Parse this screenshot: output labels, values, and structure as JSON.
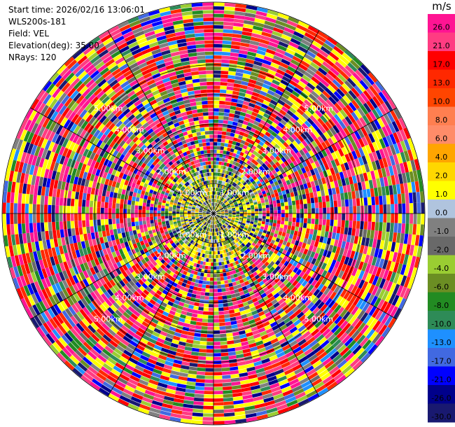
{
  "info": {
    "start_time": "Start time: 2026/02/16 13:06:01",
    "instrument": "WLS200s-181",
    "field": "Field: VEL",
    "elevation": "Elevation(deg): 35.00",
    "nrays": "NRays: 120"
  },
  "colorbar": {
    "unit": "m/s",
    "labels": [
      "26.0",
      "21.0",
      "17.0",
      "13.0",
      "10.0",
      "8.0",
      "6.0",
      "4.0",
      "2.0",
      "1.0",
      "0.0",
      "-1.0",
      "-2.0",
      "-4.0",
      "-6.0",
      "-8.0",
      "-10.0",
      "-13.0",
      "-17.0",
      "-21.0",
      "-26.0",
      "-30.0"
    ],
    "colors": [
      "#ff1493",
      "#ff3c82",
      "#ff0000",
      "#ff2800",
      "#ff4500",
      "#ff7f50",
      "#ff8c69",
      "#ffa500",
      "#ffd700",
      "#ffff00",
      "#b0c4de",
      "#808080",
      "#696969",
      "#9acd32",
      "#6b8e23",
      "#228b22",
      "#2e8b57",
      "#1e90ff",
      "#4169e1",
      "#0000ff",
      "#00008b",
      "#191970"
    ]
  },
  "chart_data": {
    "type": "ppi",
    "field": "VEL",
    "unit": "m/s",
    "elevation_deg": 35.0,
    "n_rays": 120,
    "range_rings_km": [
      "1.00km",
      "2.00km",
      "3.00km",
      "4.00km",
      "5.00km"
    ],
    "max_range_km": 5.7,
    "grid": true
  }
}
